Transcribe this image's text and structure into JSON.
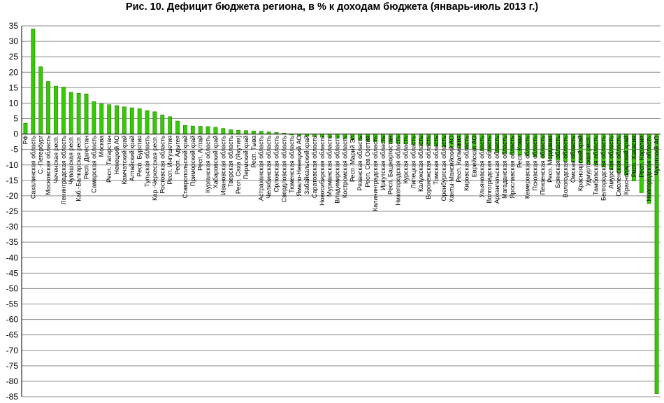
{
  "chart_data": {
    "type": "bar",
    "title": "Рис. 10. Дефицит бюджета региона, в % к доходам бюджета (январь-июль 2013 г.)",
    "xlabel": "",
    "ylabel": "",
    "ylim": [
      -85,
      35
    ],
    "yticks": [
      35,
      30,
      25,
      20,
      15,
      10,
      5,
      0,
      -5,
      -10,
      -15,
      -20,
      -25,
      -30,
      -35,
      -40,
      -45,
      -50,
      -55,
      -60,
      -65,
      -70,
      -75,
      -80,
      -85
    ],
    "grid": true,
    "legend": "none",
    "bar_color": "#33cc00",
    "bar_edge_color": "#1f7a00",
    "categories": [
      "РФ",
      "Сахалинская область",
      "С.-Петербург",
      "Московская область",
      "Чеченская респ.",
      "Ленинградская область",
      "Чувашская респ.",
      "Каб.-Балкарская респ.",
      "Респ. Дагестан",
      "Самарская область",
      "Москва",
      "Респ. Татарстан",
      "Ненецкий АО",
      "Камчатский край",
      "Алтайский край",
      "Респ. Бурятия",
      "Тульская область",
      "Кар.-Черкесская респ.",
      "Ростовская область",
      "Респ. Ингушетия",
      "Респ. Адыгея",
      "Ставропольский край",
      "Приморский край",
      "Респ. Алтай",
      "Курганская область",
      "Хабаровский край",
      "Ивановская область",
      "Тверская область",
      "Респ. Саха (Якутия)",
      "Пермский край",
      "Респ. Тыва",
      "Астраханская область",
      "Челябинская область",
      "Орловская область",
      "Свердловская область",
      "Тюменская область",
      "Ямало-Ненецкий АО",
      "Забайкальский край",
      "Саратовская область",
      "Новосибирская область",
      "Мурманская область",
      "Владимирская область",
      "Костромская область",
      "Респ. Марий Эл",
      "Рязанская область",
      "Респ. Сев.Осетия",
      "Калининградская область",
      "Иркутская область",
      "Респ. Башкортостан",
      "Нижегородская область",
      "Курская область",
      "Липецкая область",
      "Калужская область",
      "Воронежская область",
      "Томская область",
      "Оренбургская область",
      "Ханты-Мансийский АО",
      "Респ. Калмыкия",
      "Кировская область",
      "Еврейская АО",
      "Ульяновская область",
      "Волгоградская область",
      "Архангельская область",
      "Магаданская область",
      "Ярославская область",
      "Респ. Коми",
      "Кемеровская область",
      "Псковская область",
      "Пензенская область",
      "Респ. Мордовия",
      "Брянская область",
      "Вологодская область",
      "Омская область",
      "Красноярский край",
      "Удмуртская респ.",
      "Тамбовская область",
      "Белгородская область",
      "Амурская область",
      "Смоленская область",
      "Краснодарский край",
      "Респ. Хакасия",
      "Респ. Карелия",
      "Новгородская область",
      "Чукотский АО"
    ],
    "values": [
      3.5,
      34,
      21.8,
      17,
      15.5,
      15.2,
      13.5,
      13.2,
      13,
      10.5,
      9.8,
      9.5,
      9.2,
      8.8,
      8.5,
      8.2,
      7.6,
      7.2,
      6.2,
      5.6,
      4.2,
      2.8,
      2.6,
      2.5,
      2.4,
      2.2,
      1.8,
      1.4,
      1.2,
      1.1,
      1.0,
      0.9,
      0.7,
      0.5,
      0.3,
      -0.3,
      -0.5,
      -0.7,
      -0.9,
      -1.0,
      -1.1,
      -1.3,
      -1.5,
      -1.8,
      -2.0,
      -2.2,
      -2.5,
      -2.7,
      -2.9,
      -3.0,
      -3.2,
      -3.4,
      -3.6,
      -3.7,
      -3.9,
      -4.1,
      -4.3,
      -4.5,
      -4.7,
      -5.0,
      -5.3,
      -5.6,
      -6.0,
      -6.3,
      -6.6,
      -6.9,
      -7.1,
      -7.3,
      -7.6,
      -8.0,
      -8.5,
      -8.8,
      -9.0,
      -9.3,
      -9.6,
      -10.0,
      -10.7,
      -11.4,
      -12.4,
      -13.3,
      -15.2,
      -19.0,
      -22.5,
      -84
    ]
  }
}
